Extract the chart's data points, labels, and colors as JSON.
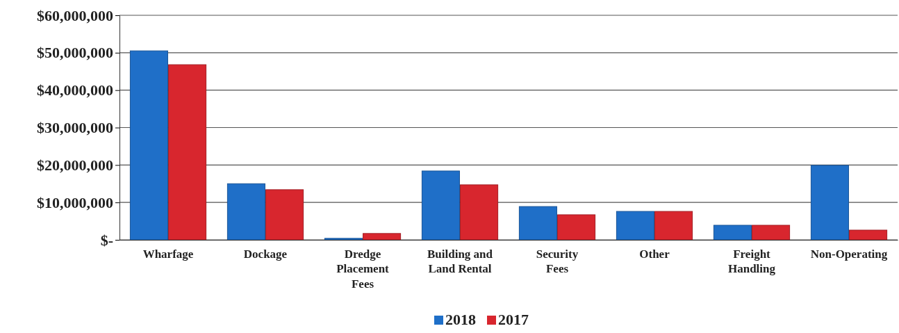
{
  "chart_data": {
    "type": "bar",
    "categories": [
      "Wharfage",
      "Dockage",
      "Dredge Placement Fees",
      "Building and Land Rental",
      "Security Fees",
      "Other",
      "Freight Handling",
      "Non-Operating"
    ],
    "series": [
      {
        "name": "2018",
        "color": "#1f6fc8",
        "values": [
          50500000,
          15000000,
          400000,
          18400000,
          8900000,
          7600000,
          3900000,
          19900000
        ]
      },
      {
        "name": "2017",
        "color": "#d8262e",
        "values": [
          46800000,
          13400000,
          1700000,
          14700000,
          6700000,
          7600000,
          3900000,
          2600000
        ]
      }
    ],
    "ylim": [
      0,
      60000000
    ],
    "yticks": [
      {
        "value": 0,
        "label": "$-"
      },
      {
        "value": 10000000,
        "label": "$10,000,000"
      },
      {
        "value": 20000000,
        "label": "$20,000,000"
      },
      {
        "value": 30000000,
        "label": "$30,000,000"
      },
      {
        "value": 40000000,
        "label": "$40,000,000"
      },
      {
        "value": 50000000,
        "label": "$50,000,000"
      },
      {
        "value": 60000000,
        "label": "$60,000,000"
      }
    ],
    "grid": "y",
    "legend": "bottom"
  }
}
